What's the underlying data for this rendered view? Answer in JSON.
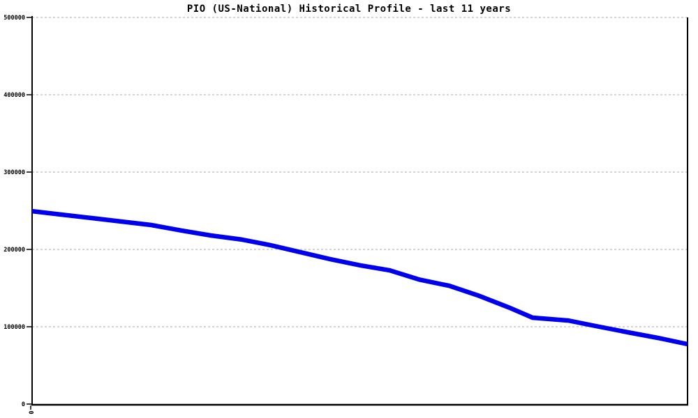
{
  "chart_data": {
    "type": "line",
    "title": "PIO (US-National) Historical Profile - last 11 years",
    "xlabel": "",
    "ylabel": "",
    "ylim": [
      0,
      500000
    ],
    "y_ticks": [
      0,
      100000,
      200000,
      300000,
      400000,
      500000
    ],
    "x_range_years": [
      0,
      11
    ],
    "x_tick_labels": [
      "0"
    ],
    "x_tick_label_rotation_deg": 90,
    "grid": "horizontal-dashed",
    "legend_position": "none",
    "series": [
      {
        "name": "PIO (US-National)",
        "color": "#0000ee",
        "points": [
          [
            0.0,
            249500
          ],
          [
            0.5,
            245000
          ],
          [
            1.0,
            240500
          ],
          [
            1.5,
            236000
          ],
          [
            2.0,
            231500
          ],
          [
            2.5,
            224500
          ],
          [
            3.0,
            218000
          ],
          [
            3.5,
            213000
          ],
          [
            4.0,
            205500
          ],
          [
            4.5,
            196500
          ],
          [
            5.0,
            187500
          ],
          [
            5.5,
            179500
          ],
          [
            6.0,
            173000
          ],
          [
            6.5,
            161000
          ],
          [
            7.0,
            153000
          ],
          [
            7.5,
            140000
          ],
          [
            8.0,
            125000
          ],
          [
            8.4,
            111700
          ],
          [
            9.0,
            108000
          ],
          [
            9.4,
            101800
          ],
          [
            10.0,
            92800
          ],
          [
            10.5,
            85600
          ],
          [
            11.0,
            77500
          ]
        ]
      }
    ]
  },
  "colors": {
    "line": "#0000ee",
    "grid": "#bbbbbb",
    "axis": "#000000",
    "text": "#000000",
    "background": "#ffffff"
  }
}
